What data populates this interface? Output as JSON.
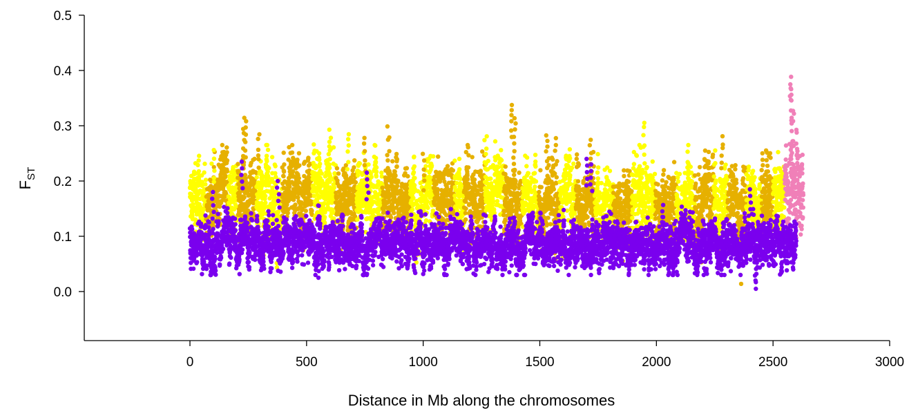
{
  "chart_data": {
    "type": "scatter",
    "title": "",
    "xlabel": "Distance in Mb along the chromosomes",
    "ylabel": {
      "main": "F",
      "subscript": "ST"
    },
    "xlim": [
      -450,
      3000
    ],
    "ylim": [
      -0.09,
      0.5
    ],
    "xticks": [
      "0",
      "500",
      "1000",
      "1500",
      "2000",
      "2500",
      "3000"
    ],
    "yticks": [
      "0.0",
      "0.1",
      "0.2",
      "0.3",
      "0.4",
      "0.5"
    ],
    "grid": false,
    "legend": "none",
    "colors": {
      "chromosome_light": "#ffff00",
      "chromosome_dark": "#e6b000",
      "comparison_2": "#7a00ee",
      "last_segment": "#f080b8"
    },
    "series": [
      {
        "segments": [
          {
            "x_start": 0,
            "x_end": 70,
            "color": "chromosome_light",
            "mean": 0.16,
            "spread": 0.045
          },
          {
            "x_start": 70,
            "x_end": 165,
            "color": "chromosome_dark",
            "mean": 0.17,
            "spread": 0.05
          },
          {
            "x_start": 165,
            "x_end": 205,
            "color": "chromosome_light",
            "mean": 0.17,
            "spread": 0.05
          },
          {
            "x_start": 205,
            "x_end": 285,
            "color": "chromosome_dark",
            "mean": 0.18,
            "spread": 0.06
          },
          {
            "x_start": 285,
            "x_end": 395,
            "color": "chromosome_light",
            "mean": 0.17,
            "spread": 0.05
          },
          {
            "x_start": 395,
            "x_end": 525,
            "color": "chromosome_dark",
            "mean": 0.17,
            "spread": 0.05
          },
          {
            "x_start": 525,
            "x_end": 625,
            "color": "chromosome_light",
            "mean": 0.18,
            "spread": 0.05
          },
          {
            "x_start": 625,
            "x_end": 715,
            "color": "chromosome_dark",
            "mean": 0.16,
            "spread": 0.05
          },
          {
            "x_start": 715,
            "x_end": 825,
            "color": "chromosome_light",
            "mean": 0.17,
            "spread": 0.05
          },
          {
            "x_start": 825,
            "x_end": 945,
            "color": "chromosome_dark",
            "mean": 0.17,
            "spread": 0.05
          },
          {
            "x_start": 945,
            "x_end": 1045,
            "color": "chromosome_light",
            "mean": 0.17,
            "spread": 0.05
          },
          {
            "x_start": 1045,
            "x_end": 1135,
            "color": "chromosome_dark",
            "mean": 0.16,
            "spread": 0.05
          },
          {
            "x_start": 1135,
            "x_end": 1175,
            "color": "chromosome_light",
            "mean": 0.17,
            "spread": 0.05
          },
          {
            "x_start": 1175,
            "x_end": 1265,
            "color": "chromosome_dark",
            "mean": 0.17,
            "spread": 0.05
          },
          {
            "x_start": 1265,
            "x_end": 1345,
            "color": "chromosome_light",
            "mean": 0.18,
            "spread": 0.05
          },
          {
            "x_start": 1345,
            "x_end": 1425,
            "color": "chromosome_dark",
            "mean": 0.17,
            "spread": 0.05
          },
          {
            "x_start": 1425,
            "x_end": 1495,
            "color": "chromosome_light",
            "mean": 0.17,
            "spread": 0.05
          },
          {
            "x_start": 1495,
            "x_end": 1585,
            "color": "chromosome_dark",
            "mean": 0.17,
            "spread": 0.05
          },
          {
            "x_start": 1585,
            "x_end": 1655,
            "color": "chromosome_light",
            "mean": 0.17,
            "spread": 0.05
          },
          {
            "x_start": 1655,
            "x_end": 1735,
            "color": "chromosome_dark",
            "mean": 0.17,
            "spread": 0.05
          },
          {
            "x_start": 1735,
            "x_end": 1815,
            "color": "chromosome_light",
            "mean": 0.16,
            "spread": 0.05
          },
          {
            "x_start": 1815,
            "x_end": 1895,
            "color": "chromosome_dark",
            "mean": 0.16,
            "spread": 0.05
          },
          {
            "x_start": 1895,
            "x_end": 1995,
            "color": "chromosome_light",
            "mean": 0.17,
            "spread": 0.05
          },
          {
            "x_start": 1995,
            "x_end": 2085,
            "color": "chromosome_dark",
            "mean": 0.16,
            "spread": 0.05
          },
          {
            "x_start": 2085,
            "x_end": 2165,
            "color": "chromosome_light",
            "mean": 0.17,
            "spread": 0.05
          },
          {
            "x_start": 2165,
            "x_end": 2245,
            "color": "chromosome_dark",
            "mean": 0.16,
            "spread": 0.05
          },
          {
            "x_start": 2245,
            "x_end": 2305,
            "color": "chromosome_light",
            "mean": 0.17,
            "spread": 0.05
          },
          {
            "x_start": 2305,
            "x_end": 2385,
            "color": "chromosome_dark",
            "mean": 0.16,
            "spread": 0.05
          },
          {
            "x_start": 2385,
            "x_end": 2450,
            "color": "chromosome_light",
            "mean": 0.17,
            "spread": 0.05
          },
          {
            "x_start": 2450,
            "x_end": 2500,
            "color": "chromosome_dark",
            "mean": 0.16,
            "spread": 0.05
          },
          {
            "x_start": 2500,
            "x_end": 2550,
            "color": "chromosome_light",
            "mean": 0.17,
            "spread": 0.05
          },
          {
            "x_start": 2550,
            "x_end": 2630,
            "color": "last_segment",
            "mean": 0.19,
            "spread": 0.06
          }
        ],
        "peaks": [
          {
            "x": 25,
            "y": 0.235,
            "color": "chromosome_light"
          },
          {
            "x": 100,
            "y": 0.26,
            "color": "chromosome_light"
          },
          {
            "x": 230,
            "y": 0.315,
            "color": "chromosome_dark"
          },
          {
            "x": 240,
            "y": 0.31,
            "color": "chromosome_dark"
          },
          {
            "x": 295,
            "y": 0.29,
            "color": "chromosome_dark"
          },
          {
            "x": 540,
            "y": 0.26,
            "color": "chromosome_light"
          },
          {
            "x": 600,
            "y": 0.295,
            "color": "chromosome_light"
          },
          {
            "x": 680,
            "y": 0.29,
            "color": "chromosome_light"
          },
          {
            "x": 750,
            "y": 0.28,
            "color": "chromosome_dark"
          },
          {
            "x": 850,
            "y": 0.3,
            "color": "chromosome_dark"
          },
          {
            "x": 1000,
            "y": 0.25,
            "color": "chromosome_dark"
          },
          {
            "x": 1270,
            "y": 0.29,
            "color": "chromosome_light"
          },
          {
            "x": 1380,
            "y": 0.345,
            "color": "chromosome_dark"
          },
          {
            "x": 1390,
            "y": 0.32,
            "color": "chromosome_dark"
          },
          {
            "x": 1530,
            "y": 0.29,
            "color": "chromosome_dark"
          },
          {
            "x": 1570,
            "y": 0.28,
            "color": "chromosome_dark"
          },
          {
            "x": 1720,
            "y": 0.28,
            "color": "chromosome_dark"
          },
          {
            "x": 1945,
            "y": 0.31,
            "color": "chromosome_light"
          },
          {
            "x": 2280,
            "y": 0.285,
            "color": "chromosome_dark"
          },
          {
            "x": 2470,
            "y": 0.265,
            "color": "chromosome_dark"
          },
          {
            "x": 2575,
            "y": 0.395,
            "color": "last_segment"
          },
          {
            "x": 2580,
            "y": 0.37,
            "color": "last_segment"
          },
          {
            "x": 2585,
            "y": 0.33,
            "color": "last_segment"
          },
          {
            "x": 2600,
            "y": 0.3,
            "color": "last_segment"
          }
        ]
      },
      {
        "color": "comparison_2",
        "x_start": 0,
        "x_end": 2600,
        "mean": 0.09,
        "spread": 0.03,
        "peaks": [
          {
            "x": 100,
            "y": 0.18,
            "color": "comparison_2"
          },
          {
            "x": 225,
            "y": 0.235,
            "color": "comparison_2"
          },
          {
            "x": 380,
            "y": 0.2,
            "color": "comparison_2"
          },
          {
            "x": 760,
            "y": 0.215,
            "color": "comparison_2"
          },
          {
            "x": 1700,
            "y": 0.24,
            "color": "comparison_2"
          },
          {
            "x": 1720,
            "y": 0.23,
            "color": "comparison_2"
          },
          {
            "x": 2400,
            "y": 0.185,
            "color": "comparison_2"
          },
          {
            "x": 550,
            "y": 0.025,
            "color": "comparison_2"
          },
          {
            "x": 2425,
            "y": 0.005,
            "color": "comparison_2"
          },
          {
            "x": 2430,
            "y": 0.02,
            "color": "comparison_2"
          },
          {
            "x": 1375,
            "y": 0.035,
            "color": "comparison_2"
          },
          {
            "x": 2080,
            "y": 0.035,
            "color": "comparison_2"
          },
          {
            "x": 2205,
            "y": 0.03,
            "color": "comparison_2"
          }
        ]
      }
    ]
  }
}
